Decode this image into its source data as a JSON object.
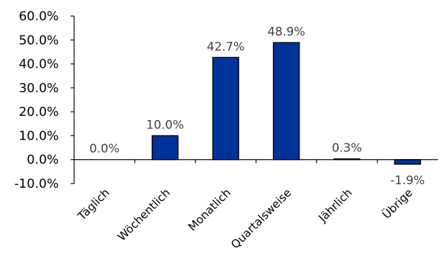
{
  "chart_data": {
    "type": "bar",
    "categories": [
      "Täglich",
      "Wöchentlich",
      "Monatlich",
      "Quartalsweise",
      "Jährlich",
      "Übrige"
    ],
    "values": [
      0.0,
      10.0,
      42.7,
      48.9,
      0.3,
      -1.9
    ],
    "data_labels": [
      "0.0%",
      "10.0%",
      "42.7%",
      "48.9%",
      "0.3%",
      "-1.9%"
    ],
    "y_ticks": [
      "60.0%",
      "50.0%",
      "40.0%",
      "30.0%",
      "20.0%",
      "10.0%",
      "0.0%",
      "-10.0%"
    ],
    "y_tick_values": [
      60,
      50,
      40,
      30,
      20,
      10,
      0,
      -10
    ],
    "ylim": [
      -10,
      60
    ],
    "bar_color": "#003399",
    "grid": false,
    "legend": "none",
    "title": "",
    "xlabel": "",
    "ylabel": ""
  }
}
